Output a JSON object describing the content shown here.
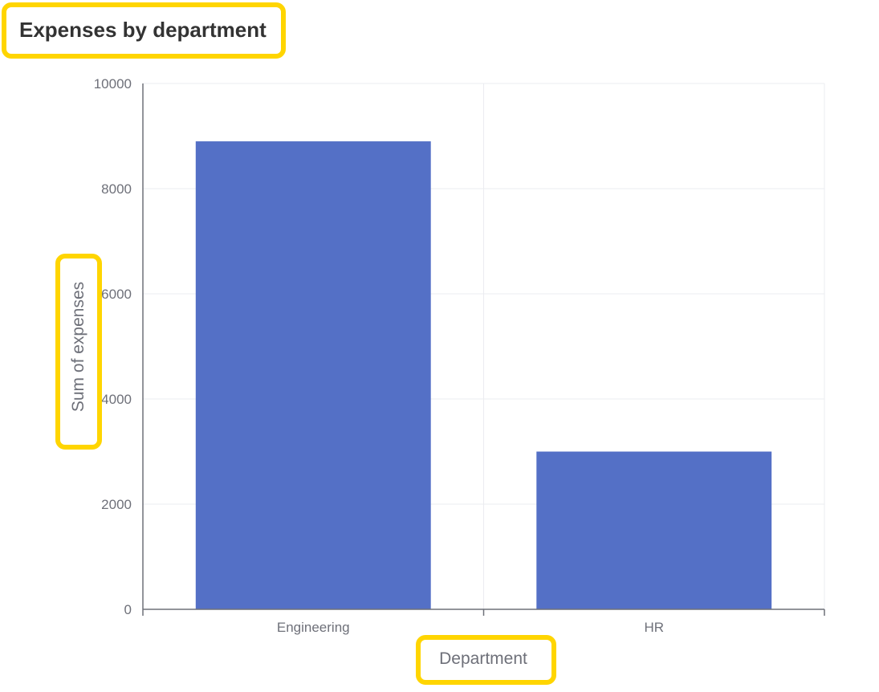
{
  "chart_data": {
    "type": "bar",
    "title": "Expenses by department",
    "xlabel": "Department",
    "ylabel": "Sum of expenses",
    "categories": [
      "Engineering",
      "HR"
    ],
    "values": [
      8900,
      3000
    ],
    "ylim": [
      0,
      10000
    ],
    "yticks": [
      "0",
      "2000",
      "4000",
      "6000",
      "8000",
      "10000"
    ],
    "grid": true,
    "bar_color": "#5470c6",
    "highlight_color": "#ffd500"
  }
}
